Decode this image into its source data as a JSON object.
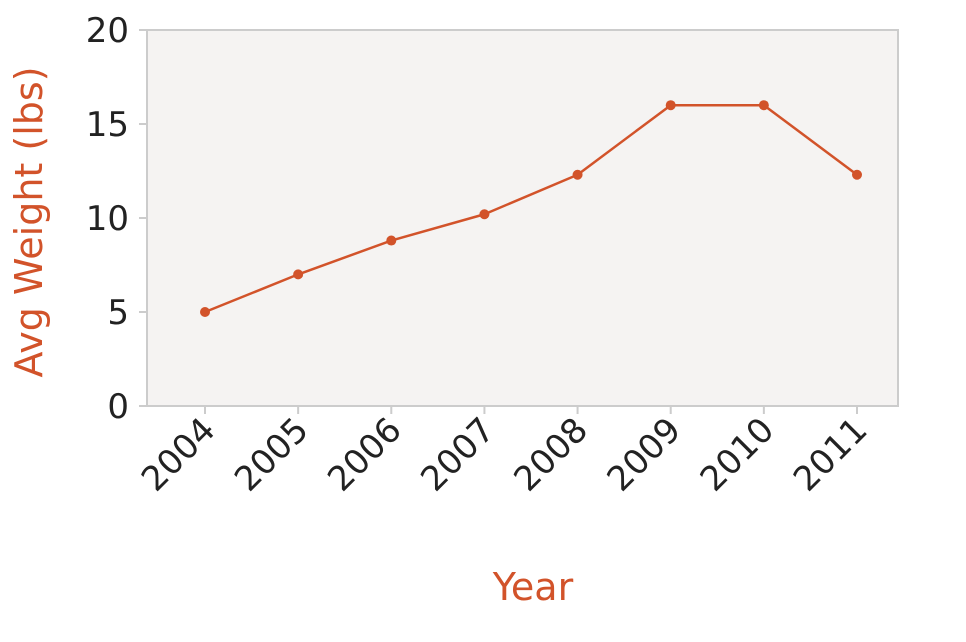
{
  "chart_data": {
    "type": "line",
    "title": "",
    "xlabel": "Year",
    "ylabel": "Avg Weight (lbs)",
    "categories": [
      "2004",
      "2005",
      "2006",
      "2007",
      "2008",
      "2009",
      "2010",
      "2011"
    ],
    "series": [
      {
        "values": [
          5.0,
          7.0,
          8.8,
          10.2,
          12.3,
          16.0,
          16.0,
          12.3
        ]
      }
    ],
    "ylim": [
      0,
      20
    ],
    "yticks": [
      0,
      5,
      10,
      15,
      20
    ],
    "grid": false,
    "legend": "none",
    "colors": {
      "line": "#d2532a",
      "axis_title": "#d2532a",
      "plot_background": "#f5f3f2",
      "plot_border": "#cccccc",
      "tick_text": "#222222"
    }
  }
}
